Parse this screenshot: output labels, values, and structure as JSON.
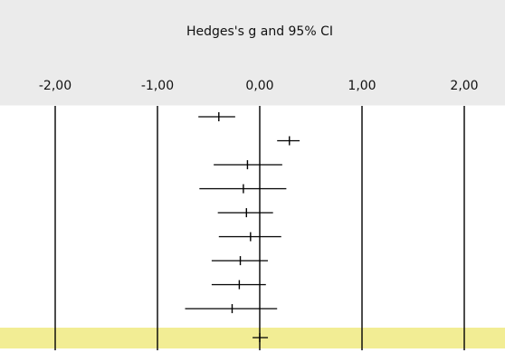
{
  "chart_data": {
    "type": "scatter",
    "title": "Hedges's g and 95% CI",
    "xlim": [
      -2.5,
      2.5
    ],
    "xticks": [
      -2,
      -1,
      0,
      1,
      2
    ],
    "xtick_labels": [
      "-2,00",
      "-1,00",
      "0,00",
      "1,00",
      "2,00"
    ],
    "grid": "vertical lines at ticks",
    "rows": [
      {
        "estimate": -0.4,
        "ci_low": -0.6,
        "ci_high": -0.24
      },
      {
        "estimate": 0.29,
        "ci_low": 0.17,
        "ci_high": 0.39
      },
      {
        "estimate": -0.12,
        "ci_low": -0.45,
        "ci_high": 0.22
      },
      {
        "estimate": -0.16,
        "ci_low": -0.59,
        "ci_high": 0.26
      },
      {
        "estimate": -0.13,
        "ci_low": -0.41,
        "ci_high": 0.13
      },
      {
        "estimate": -0.09,
        "ci_low": -0.4,
        "ci_high": 0.21
      },
      {
        "estimate": -0.19,
        "ci_low": -0.47,
        "ci_high": 0.08
      },
      {
        "estimate": -0.2,
        "ci_low": -0.47,
        "ci_high": 0.06
      },
      {
        "estimate": -0.27,
        "ci_low": -0.73,
        "ci_high": 0.17
      }
    ],
    "summary": {
      "estimate": 0.0,
      "ci_low": -0.07,
      "ci_high": 0.08
    },
    "colors": {
      "header_background": "#ebebeb",
      "summary_band": "#f2ed94",
      "lines": "#000000"
    }
  }
}
